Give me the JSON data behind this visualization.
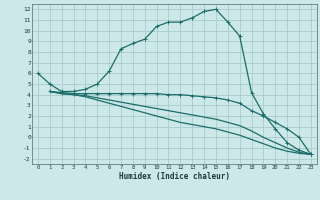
{
  "xlabel": "Humidex (Indice chaleur)",
  "bg_color": "#cce8e8",
  "grid_color": "#aacccc",
  "line_color": "#1a6e6a",
  "xlim": [
    -0.5,
    23.5
  ],
  "ylim": [
    -2.5,
    12.5
  ],
  "xticks": [
    0,
    1,
    2,
    3,
    4,
    5,
    6,
    7,
    8,
    9,
    10,
    11,
    12,
    13,
    14,
    15,
    16,
    17,
    18,
    19,
    20,
    21,
    22,
    23
  ],
  "yticks": [
    -2,
    -1,
    0,
    1,
    2,
    3,
    4,
    5,
    6,
    7,
    8,
    9,
    10,
    11,
    12
  ],
  "line1_x": [
    0,
    1,
    2,
    3,
    4,
    5,
    6,
    7,
    8,
    9,
    10,
    11,
    12,
    13,
    14,
    15,
    16,
    17,
    18,
    19,
    20,
    21,
    22,
    23
  ],
  "line1_y": [
    6.0,
    5.0,
    4.3,
    4.3,
    4.5,
    5.0,
    6.2,
    8.3,
    8.8,
    9.2,
    10.4,
    10.8,
    10.8,
    11.2,
    11.8,
    12.0,
    10.8,
    9.5,
    4.2,
    2.2,
    0.8,
    -0.5,
    -1.2,
    -1.6
  ],
  "line2_x": [
    1,
    2,
    3,
    4,
    5,
    6,
    7,
    8,
    9,
    10,
    11,
    12,
    13,
    14,
    15,
    16,
    17,
    18,
    19,
    20,
    21,
    22,
    23
  ],
  "line2_y": [
    4.3,
    4.2,
    4.1,
    4.1,
    4.1,
    4.1,
    4.1,
    4.1,
    4.1,
    4.1,
    4.0,
    4.0,
    3.9,
    3.8,
    3.7,
    3.5,
    3.2,
    2.5,
    2.0,
    1.4,
    0.8,
    0.0,
    -1.6
  ],
  "line3_x": [
    1,
    2,
    3,
    4,
    5,
    6,
    7,
    8,
    9,
    10,
    11,
    12,
    13,
    14,
    15,
    16,
    17,
    18,
    19,
    20,
    21,
    22,
    23
  ],
  "line3_y": [
    4.3,
    4.1,
    4.0,
    3.9,
    3.7,
    3.5,
    3.3,
    3.1,
    2.9,
    2.7,
    2.5,
    2.3,
    2.1,
    1.9,
    1.7,
    1.4,
    1.1,
    0.6,
    0.0,
    -0.5,
    -1.0,
    -1.4,
    -1.6
  ],
  "line4_x": [
    1,
    2,
    3,
    4,
    5,
    6,
    7,
    8,
    9,
    10,
    11,
    12,
    13,
    14,
    15,
    16,
    17,
    18,
    19,
    20,
    21,
    22,
    23
  ],
  "line4_y": [
    4.3,
    4.1,
    4.0,
    3.8,
    3.5,
    3.2,
    2.9,
    2.6,
    2.3,
    2.0,
    1.7,
    1.4,
    1.2,
    1.0,
    0.8,
    0.5,
    0.2,
    -0.2,
    -0.6,
    -1.0,
    -1.3,
    -1.5,
    -1.6
  ]
}
